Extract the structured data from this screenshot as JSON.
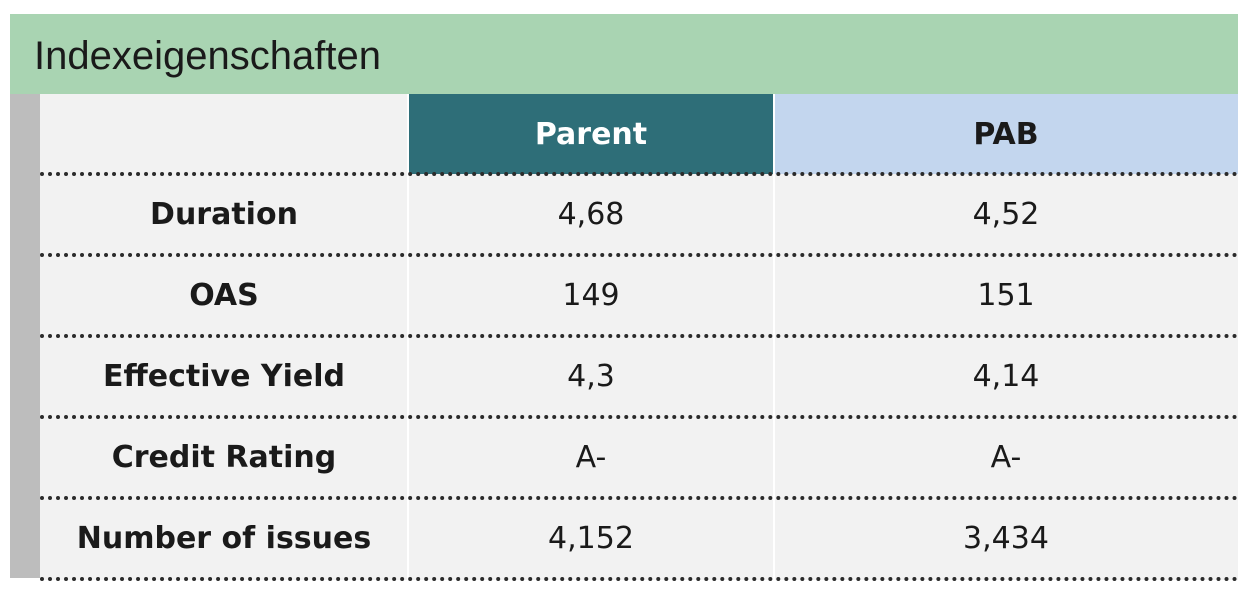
{
  "chart_data": {
    "type": "table",
    "title": "Indexeigenschaften",
    "columns": [
      "",
      "Parent",
      "PAB"
    ],
    "rows": [
      {
        "label": "Duration",
        "parent": "4,68",
        "pab": "4,52"
      },
      {
        "label": "OAS",
        "parent": "149",
        "pab": "151"
      },
      {
        "label": "Effective Yield",
        "parent": "4,3",
        "pab": "4,14"
      },
      {
        "label": "Credit Rating",
        "parent": "A-",
        "pab": "A-"
      },
      {
        "label": "Number of issues",
        "parent": "4,152",
        "pab": "3,434"
      }
    ]
  },
  "colors": {
    "title_bar": "#a9d4b2",
    "parent_header": "#2e6e78",
    "pab_header": "#c3d6ee",
    "body": "#f2f2f2",
    "side_bar": "#bdbdbd"
  }
}
